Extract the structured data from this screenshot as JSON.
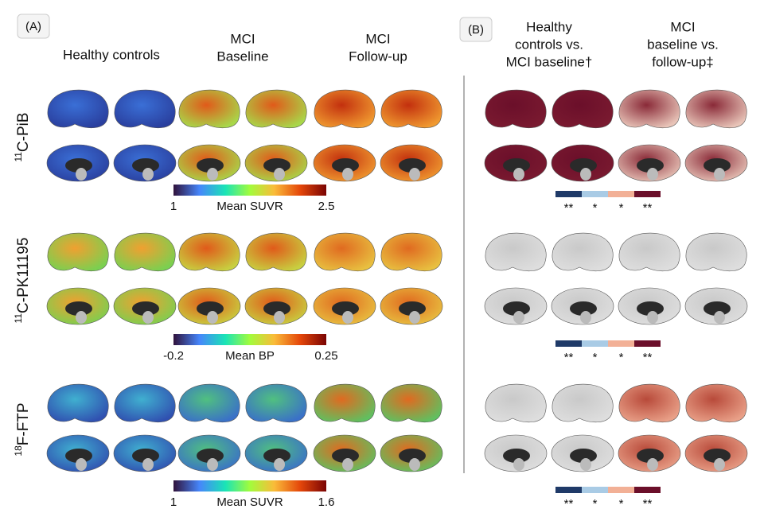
{
  "panel_a": {
    "label": "(A)",
    "columns": [
      [
        "Healthy controls"
      ],
      [
        "MCI",
        "Baseline"
      ],
      [
        "MCI",
        "Follow-up"
      ]
    ]
  },
  "panel_b": {
    "label": "(B)",
    "columns": [
      [
        "Healthy",
        "controls vs.",
        "MCI baseline†"
      ],
      [
        "MCI",
        "baseline vs.",
        "follow-up‡"
      ]
    ]
  },
  "rows": [
    {
      "tracer": {
        "superscript": "11",
        "name": "C-PiB"
      },
      "colorbar": {
        "min": "1",
        "label": "Mean SUVR",
        "max": "2.5"
      },
      "significance": [
        "**",
        "*",
        "*",
        "**"
      ]
    },
    {
      "tracer": {
        "superscript": "11",
        "name": "C-PK11195"
      },
      "colorbar": {
        "min": "-0.2",
        "label": "Mean BP",
        "max": "0.25"
      },
      "significance": [
        "**",
        "*",
        "*",
        "**"
      ]
    },
    {
      "tracer": {
        "superscript": "18",
        "name": "F-FTP"
      },
      "colorbar": {
        "min": "1",
        "label": "Mean SUVR",
        "max": "1.6"
      },
      "significance": [
        "**",
        "*",
        "*",
        "**"
      ]
    }
  ]
}
